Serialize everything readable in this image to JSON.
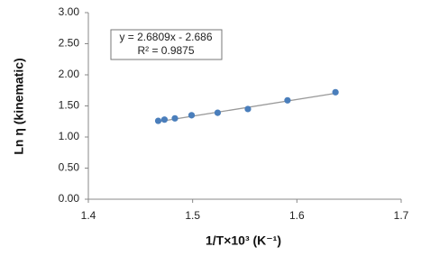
{
  "chart_data": {
    "type": "scatter",
    "x_label": "1/T×10³ (K⁻¹)",
    "y_label": "Ln η (kinematic)",
    "series": [
      {
        "name": "Ln η",
        "color": "#4a7ebb",
        "x": [
          1.467,
          1.473,
          1.483,
          1.499,
          1.524,
          1.553,
          1.591,
          1.637
        ],
        "values": [
          1.26,
          1.28,
          1.3,
          1.35,
          1.39,
          1.45,
          1.59,
          1.72
        ]
      }
    ],
    "trendline": {
      "slope": 2.6809,
      "intercept": -2.686,
      "color": "#999999",
      "equation": "y = 2.6809x - 2.686",
      "r2": 0.9875,
      "r2_label": "R² = 0.9875"
    },
    "xlim": [
      1.4,
      1.7
    ],
    "xticks": [
      1.4,
      1.5,
      1.6,
      1.7
    ],
    "ylim": [
      0,
      3
    ],
    "yticks": [
      {
        "value": 0,
        "label": "0.00"
      },
      {
        "value": 0.5,
        "label": "0.50"
      },
      {
        "value": 1,
        "label": "1.00"
      },
      {
        "value": 1.5,
        "label": "1.50"
      },
      {
        "value": 2,
        "label": "2.00"
      },
      {
        "value": 2.5,
        "label": "2.50"
      },
      {
        "value": 3,
        "label": "3.00"
      }
    ],
    "grid": false
  }
}
